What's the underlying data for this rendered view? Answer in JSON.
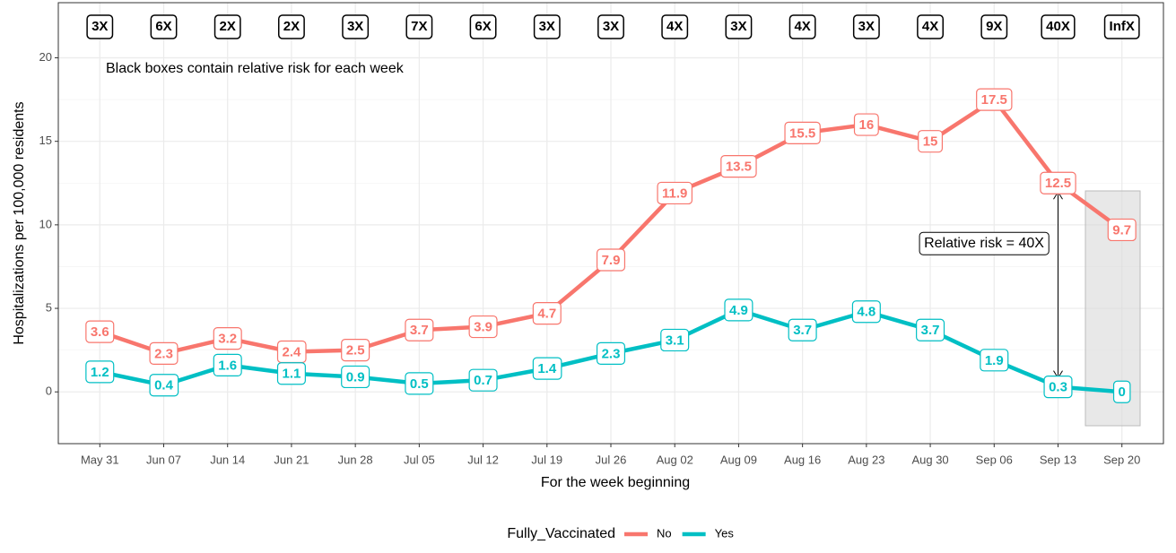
{
  "chart_data": {
    "type": "line",
    "x_label": "For the week beginning",
    "y_label": "Hospitalizations per 100,000 residents",
    "categories": [
      "May 31",
      "Jun 07",
      "Jun 14",
      "Jun 21",
      "Jun 28",
      "Jul 05",
      "Jul 12",
      "Jul 19",
      "Jul 26",
      "Aug 02",
      "Aug 09",
      "Aug 16",
      "Aug 23",
      "Aug 30",
      "Sep 06",
      "Sep 13",
      "Sep 20"
    ],
    "series": [
      {
        "name": "No",
        "color": "#F8766D",
        "values": [
          3.6,
          2.3,
          3.2,
          2.4,
          2.5,
          3.7,
          3.9,
          4.7,
          7.9,
          11.9,
          13.5,
          15.5,
          16,
          15,
          17.5,
          12.5,
          9.7
        ]
      },
      {
        "name": "Yes",
        "color": "#00BFC4",
        "values": [
          1.2,
          0.4,
          1.6,
          1.1,
          0.9,
          0.5,
          0.7,
          1.4,
          2.3,
          3.1,
          4.9,
          3.7,
          4.8,
          3.7,
          1.9,
          0.3,
          0
        ]
      }
    ],
    "relative_risk": [
      "3X",
      "6X",
      "2X",
      "2X",
      "3X",
      "7X",
      "6X",
      "3X",
      "3X",
      "4X",
      "3X",
      "4X",
      "3X",
      "4X",
      "9X",
      "40X",
      "InfX"
    ],
    "annotations": [
      "Black boxes contain relative risk for each week",
      "Relative risk = 40X"
    ],
    "legend_title": "Fully_Vaccinated",
    "legend": "bottom",
    "ylim": [
      -3.1,
      23.3
    ],
    "yticks": [
      0,
      5,
      10,
      15,
      20
    ],
    "grid": true
  }
}
